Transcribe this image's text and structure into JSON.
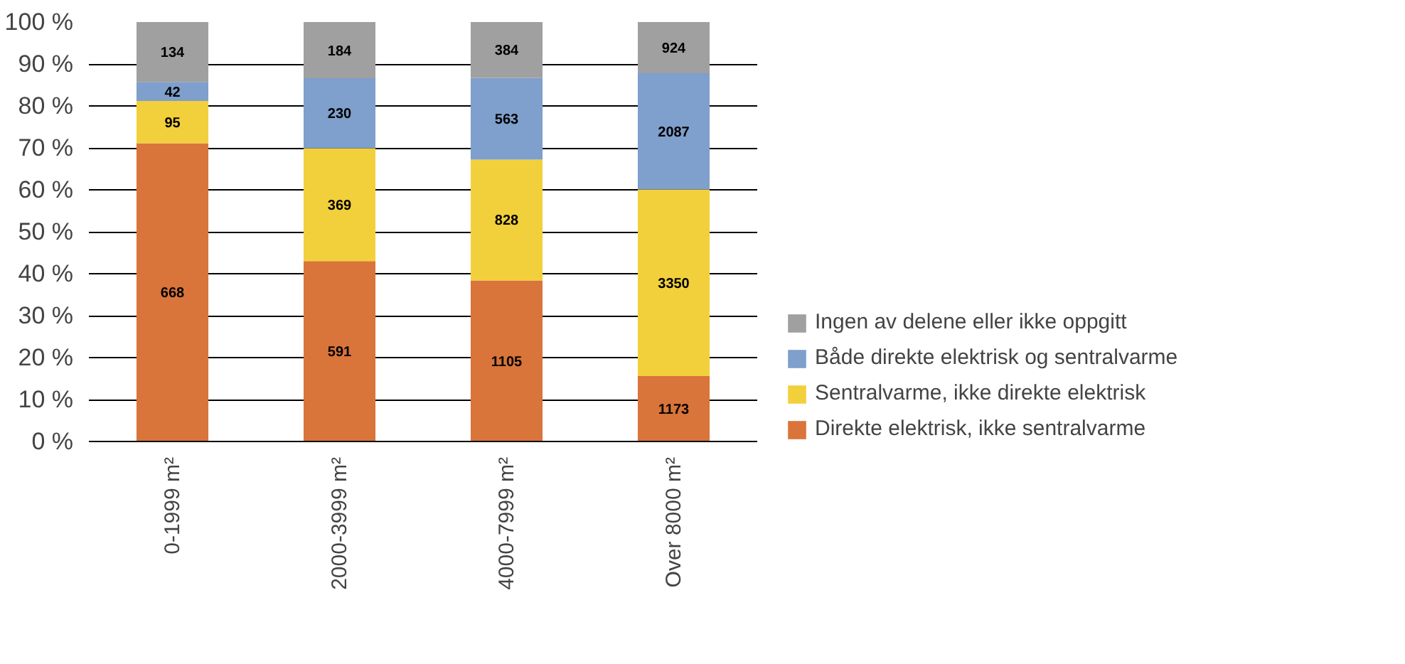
{
  "chart_data": {
    "type": "bar",
    "stacked": true,
    "categories": [
      "0-1999 m²",
      "2000-3999 m²",
      "4000-7999 m²",
      "Over 8000 m²"
    ],
    "series": [
      {
        "name": "Direkte elektrisk, ikke sentralvarme",
        "color": "#d9743a",
        "values": [
          71.1,
          43.0,
          38.4,
          15.6
        ]
      },
      {
        "name": "Sentralvarme, ikke direkte elektrisk",
        "color": "#f2d03b",
        "values": [
          10.1,
          26.9,
          28.8,
          44.5
        ]
      },
      {
        "name": "Både direkte elektrisk og sentralvarme",
        "color": "#7f9fcc",
        "values": [
          4.5,
          16.7,
          19.5,
          27.7
        ]
      },
      {
        "name": "Ingen av delene eller ikke oppgitt",
        "color": "#a0a0a0",
        "values": [
          14.3,
          13.4,
          13.3,
          12.2
        ]
      }
    ],
    "annotations": [
      "668",
      "95",
      "42",
      "134",
      "591",
      "369",
      "230",
      "184",
      "1105",
      "828",
      "563",
      "384",
      "1173",
      "3350",
      "2087",
      "924"
    ],
    "ylim": [
      0,
      100
    ],
    "yticks": [
      {
        "value": 0,
        "label": "0 %"
      },
      {
        "value": 10,
        "label": "10 %"
      },
      {
        "value": 20,
        "label": "20 %"
      },
      {
        "value": 30,
        "label": "30 %"
      },
      {
        "value": 40,
        "label": "40 %"
      },
      {
        "value": 50,
        "label": "50 %"
      },
      {
        "value": 60,
        "label": "60 %"
      },
      {
        "value": 70,
        "label": "70 %"
      },
      {
        "value": 80,
        "label": "80 %"
      },
      {
        "value": 90,
        "label": "90 %"
      },
      {
        "value": 100,
        "label": "100 %"
      }
    ],
    "grid": "y",
    "legend": "right"
  }
}
